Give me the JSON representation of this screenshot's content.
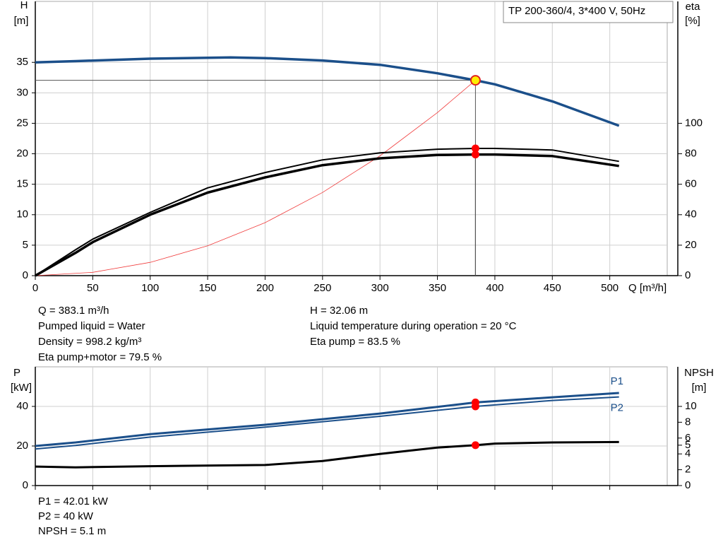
{
  "chart_data": [
    {
      "type": "line",
      "legend_text": "TP 200-360/4, 3*400 V, 50Hz",
      "ylabel": "H",
      "yunit": "[m]",
      "y2label": "eta",
      "y2unit": "[%]",
      "xlabel": "Q [m³/h]",
      "xlim": [
        0,
        550
      ],
      "xticks": [
        0,
        50,
        100,
        150,
        200,
        250,
        300,
        350,
        400,
        450,
        500
      ],
      "ylim": [
        0,
        45
      ],
      "yticks": [
        0,
        5,
        10,
        15,
        20,
        25,
        30,
        35
      ],
      "y2lim": [
        0,
        180
      ],
      "y2ticks": [
        0,
        20,
        40,
        60,
        80,
        100
      ],
      "grid": true,
      "series": [
        {
          "color": "#1b4f8a",
          "width": 3.5,
          "axis": "y",
          "x": [
            0,
            35,
            100,
            170,
            200,
            250,
            300,
            350,
            383.1,
            400,
            450,
            508
          ],
          "values": [
            35,
            35.2,
            35.6,
            35.8,
            35.7,
            35.3,
            34.6,
            33.2,
            32.06,
            31.4,
            28.6,
            24.6
          ]
        },
        {
          "color": "#f03c3c",
          "width": 0.8,
          "axis": "y",
          "x": [
            0,
            50,
            100,
            150,
            200,
            250,
            300,
            350,
            383.1
          ],
          "values": [
            0,
            0.55,
            2.18,
            4.9,
            8.7,
            13.65,
            19.66,
            26.76,
            32.06
          ]
        },
        {
          "color": "#000000",
          "width": 2,
          "axis": "y2",
          "x": [
            0,
            35,
            50,
            100,
            150,
            200,
            250,
            300,
            350,
            383.1,
            400,
            450,
            508
          ],
          "values": [
            0,
            17,
            24,
            41.5,
            57.6,
            67.7,
            76,
            80.6,
            83,
            83.5,
            83.5,
            82.5,
            75
          ]
        },
        {
          "color": "#000000",
          "width": 3.5,
          "axis": "y2",
          "x": [
            0,
            35,
            50,
            100,
            150,
            200,
            250,
            300,
            350,
            383.1,
            400,
            450,
            508
          ],
          "values": [
            0,
            15,
            22,
            40,
            54.5,
            64.5,
            72.5,
            77,
            79.2,
            79.5,
            79.5,
            78.5,
            72
          ]
        }
      ],
      "markers": [
        {
          "x": 383.1,
          "y": 32.06,
          "axis": "y",
          "color": "#ffee00",
          "crosshair": true
        },
        {
          "x": 383.1,
          "y": 83.5,
          "axis": "y2",
          "color": "#ff0000"
        },
        {
          "x": 383.1,
          "y": 79.5,
          "axis": "y2",
          "color": "#ff0000"
        }
      ]
    },
    {
      "type": "line",
      "ylabel": "P",
      "yunit": "[kW]",
      "y2label": "NPSH",
      "y2unit": "[m]",
      "xlim": [
        0,
        550
      ],
      "xticks": [
        0,
        50,
        100,
        150,
        200,
        250,
        300,
        350,
        400,
        450,
        500
      ],
      "ylim": [
        0,
        60
      ],
      "yticks": [
        0,
        20,
        40
      ],
      "y2lim": [
        0,
        15
      ],
      "y2ticks": [
        0,
        2,
        4,
        {
          "value": 5.1,
          "label": "5"
        },
        6,
        8,
        10
      ],
      "grid": true,
      "series": [
        {
          "name": "P1",
          "color": "#1b4f8a",
          "width": 3,
          "axis": "y",
          "x": [
            0,
            35,
            100,
            200,
            300,
            383.1,
            450,
            508
          ],
          "values": [
            20,
            21.8,
            26,
            30.7,
            36.4,
            42.01,
            44.6,
            46.8
          ]
        },
        {
          "name": "P2",
          "color": "#1b4f8a",
          "width": 2,
          "axis": "y",
          "x": [
            0,
            35,
            100,
            200,
            300,
            383.1,
            450,
            508
          ],
          "values": [
            18.5,
            20.3,
            24.5,
            29.5,
            35,
            40,
            43,
            44.8
          ]
        },
        {
          "color": "#000000",
          "width": 3,
          "axis": "y2",
          "x": [
            0,
            35,
            100,
            200,
            250,
            300,
            350,
            383.1,
            400,
            450,
            508
          ],
          "values": [
            2.4,
            2.3,
            2.45,
            2.6,
            3.1,
            4,
            4.8,
            5.1,
            5.3,
            5.45,
            5.5
          ]
        }
      ],
      "markers": [
        {
          "x": 383.1,
          "y": 42.01,
          "axis": "y",
          "color": "#ff0000"
        },
        {
          "x": 383.1,
          "y": 40,
          "axis": "y",
          "color": "#ff0000"
        },
        {
          "x": 383.1,
          "y": 5.1,
          "axis": "y2",
          "color": "#ff0000"
        }
      ]
    }
  ],
  "info_top": {
    "left": [
      "Q = 383.1 m³/h",
      "Pumped liquid = Water",
      "Density = 998.2 kg/m³",
      "Eta pump+motor = 79.5 %"
    ],
    "right": [
      "H = 32.06 m",
      "Liquid temperature during operation = 20 °C",
      "Eta pump = 83.5 %"
    ]
  },
  "info_bottom": [
    "P1 = 42.01 kW",
    "P2 = 40 kW",
    "NPSH = 5.1 m"
  ]
}
